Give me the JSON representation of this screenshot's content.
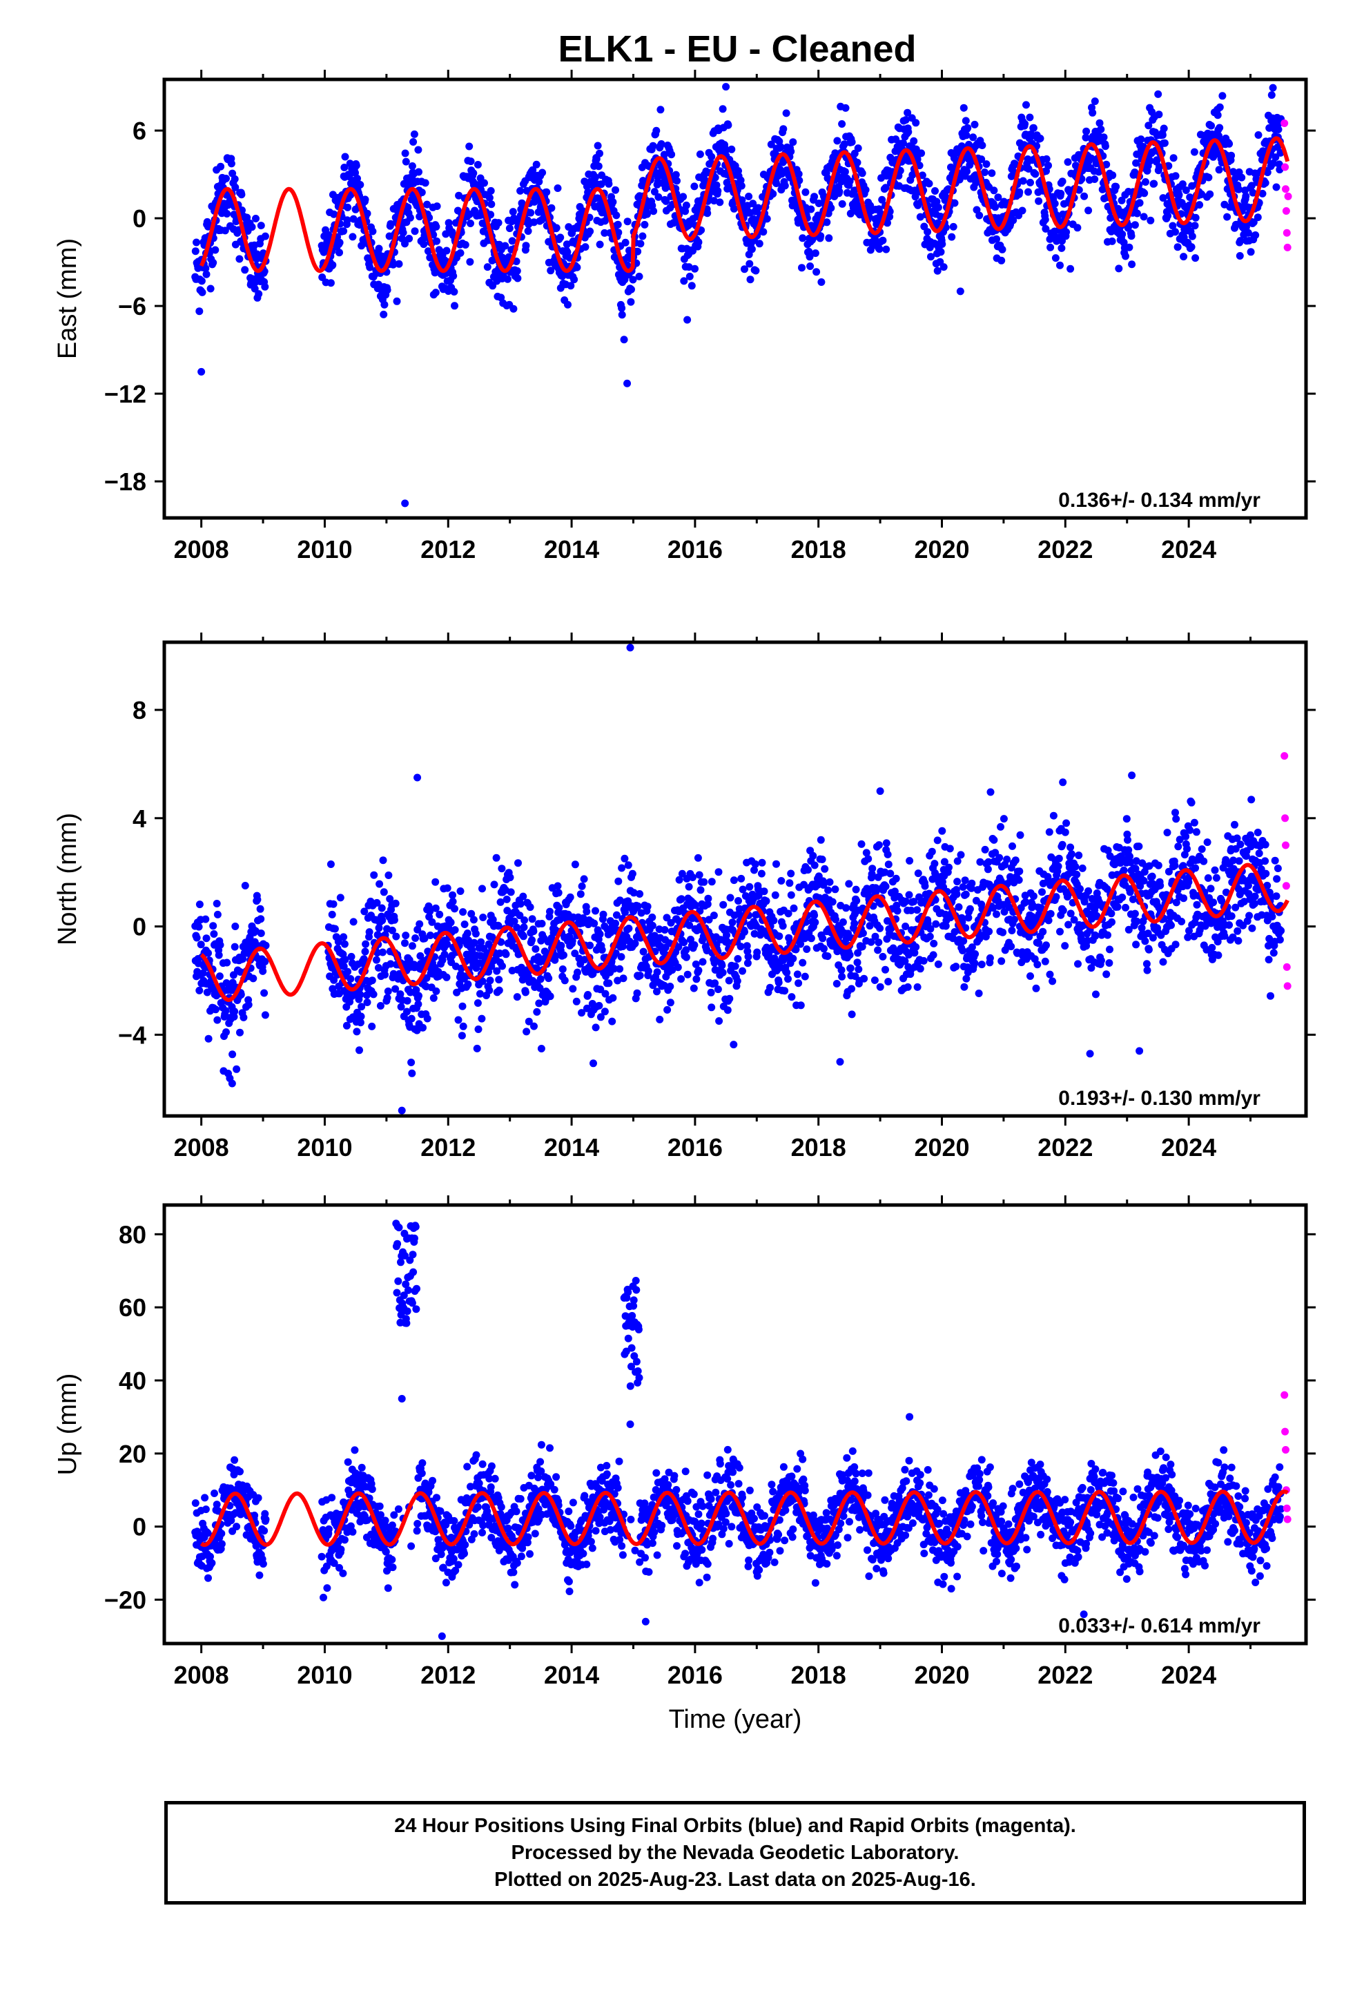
{
  "title": "ELK1  - EU - Cleaned",
  "colors": {
    "final": "#0000ff",
    "rapid": "#ff00ff",
    "model": "#ff0000",
    "axis": "#000000"
  },
  "footer": {
    "line1": "24 Hour Positions Using Final Orbits (blue) and Rapid Orbits (magenta).",
    "line2": "Processed by the Nevada Geodetic Laboratory.",
    "line3": "Plotted on 2025-Aug-23. Last data on 2025-Aug-16."
  },
  "chart_data": [
    {
      "type": "scatter",
      "id": "east",
      "ylabel": "East (mm)",
      "xlabel": "",
      "xlim": [
        2007.4,
        2025.9
      ],
      "ylim": [
        -20.5,
        9.5
      ],
      "xticks": [
        2008,
        2010,
        2012,
        2014,
        2016,
        2018,
        2020,
        2022,
        2024
      ],
      "yticks": [
        -18,
        -12,
        -6,
        0,
        6
      ],
      "ytick_labels": [
        "−18",
        "−12",
        "−6",
        "0",
        "6"
      ],
      "rate_label": "0.136+/- 0.134 mm/yr",
      "series": [
        {
          "name": "Final Orbits (blue)",
          "approx_start": 2007.9,
          "approx_end": 2025.5,
          "gaps": [
            [
              2009.05,
              2009.95
            ]
          ],
          "noise_sd": 1.4
        },
        {
          "name": "Rapid Orbits (magenta)",
          "x": [
            2025.55,
            2025.56,
            2025.57,
            2025.58,
            2025.59,
            2025.6,
            2025.61
          ],
          "y": [
            6.5,
            3.5,
            2.0,
            0.5,
            -1.0,
            -2.0,
            1.5
          ]
        },
        {
          "name": "model",
          "segments": [
            {
              "x_from": 2008.0,
              "x_to": 2015.0,
              "offset": -0.8,
              "slope": 0.0
            },
            {
              "x_from": 2015.0,
              "x_to": 2025.6,
              "offset": 0.3,
              "slope": 0.136
            }
          ],
          "annual_amplitude": 2.8,
          "annual_peak": 0.42
        }
      ],
      "outliers": [
        {
          "x": 2008.0,
          "y": -10.5
        },
        {
          "x": 2011.3,
          "y": -19.5
        },
        {
          "x": 2014.9,
          "y": -11.3
        },
        {
          "x": 2014.85,
          "y": -8.3
        },
        {
          "x": 2020.3,
          "y": -5.0
        },
        {
          "x": 2016.5,
          "y": 9.0
        }
      ]
    },
    {
      "type": "scatter",
      "id": "north",
      "ylabel": "North (mm)",
      "xlabel": "",
      "xlim": [
        2007.4,
        2025.9
      ],
      "ylim": [
        -7.0,
        10.5
      ],
      "xticks": [
        2008,
        2010,
        2012,
        2014,
        2016,
        2018,
        2020,
        2022,
        2024
      ],
      "yticks": [
        -4,
        0,
        4,
        8
      ],
      "ytick_labels": [
        "−4",
        "0",
        "4",
        "8"
      ],
      "rate_label": "0.193+/- 0.130 mm/yr",
      "series": [
        {
          "name": "Final Orbits (blue)",
          "approx_start": 2007.9,
          "approx_end": 2025.5,
          "gaps": [
            [
              2009.05,
              2010.05
            ]
          ],
          "noise_sd": 1.1
        },
        {
          "name": "Rapid Orbits (magenta)",
          "x": [
            2025.55,
            2025.56,
            2025.57,
            2025.58,
            2025.59,
            2025.6
          ],
          "y": [
            6.3,
            4.0,
            3.0,
            1.5,
            -1.5,
            -2.2
          ]
        },
        {
          "name": "model",
          "segments": [
            {
              "x_from": 2008.0,
              "x_to": 2025.6,
              "offset": -1.9,
              "slope": 0.193
            }
          ],
          "annual_amplitude": 0.9,
          "annual_peak": 0.95
        }
      ],
      "outliers": [
        {
          "x": 2014.95,
          "y": 10.3
        },
        {
          "x": 2011.25,
          "y": -6.8
        },
        {
          "x": 2008.5,
          "y": -5.8
        },
        {
          "x": 2018.35,
          "y": -5.0
        },
        {
          "x": 2022.4,
          "y": -4.7
        },
        {
          "x": 2023.2,
          "y": -4.6
        },
        {
          "x": 2011.5,
          "y": 5.5
        },
        {
          "x": 2019.0,
          "y": 5.0
        }
      ]
    },
    {
      "type": "scatter",
      "id": "up",
      "ylabel": "Up (mm)",
      "xlabel": "Time (year)",
      "xlim": [
        2007.4,
        2025.9
      ],
      "ylim": [
        -32.0,
        88.0
      ],
      "xticks": [
        2008,
        2010,
        2012,
        2014,
        2016,
        2018,
        2020,
        2022,
        2024
      ],
      "yticks": [
        -20,
        0,
        20,
        40,
        60,
        80
      ],
      "ytick_labels": [
        "−20",
        "0",
        "20",
        "40",
        "60",
        "80"
      ],
      "rate_label": "0.033+/- 0.614 mm/yr",
      "series": [
        {
          "name": "Final Orbits (blue)",
          "approx_start": 2007.9,
          "approx_end": 2025.5,
          "gaps": [
            [
              2009.05,
              2009.95
            ]
          ],
          "noise_sd": 5.0
        },
        {
          "name": "Rapid Orbits (magenta)",
          "x": [
            2025.55,
            2025.56,
            2025.57,
            2025.58,
            2025.59,
            2025.6
          ],
          "y": [
            36.0,
            26.0,
            21.0,
            10.0,
            5.0,
            2.0
          ]
        },
        {
          "name": "model",
          "segments": [
            {
              "x_from": 2008.0,
              "x_to": 2025.6,
              "offset": 2.0,
              "slope": 0.033
            }
          ],
          "annual_amplitude": 7.0,
          "annual_peak": 0.55
        }
      ],
      "excursions": [
        {
          "x_from": 2011.15,
          "x_to": 2011.5,
          "y_from": 55,
          "y_to": 84
        },
        {
          "x_from": 2014.85,
          "x_to": 2015.1,
          "y_from": 38,
          "y_to": 69
        }
      ],
      "outliers": [
        {
          "x": 2011.25,
          "y": 35.0
        },
        {
          "x": 2014.95,
          "y": 28.0
        },
        {
          "x": 2022.3,
          "y": -24.0
        },
        {
          "x": 2015.2,
          "y": -26.0
        },
        {
          "x": 2011.9,
          "y": -30.0
        }
      ]
    }
  ]
}
